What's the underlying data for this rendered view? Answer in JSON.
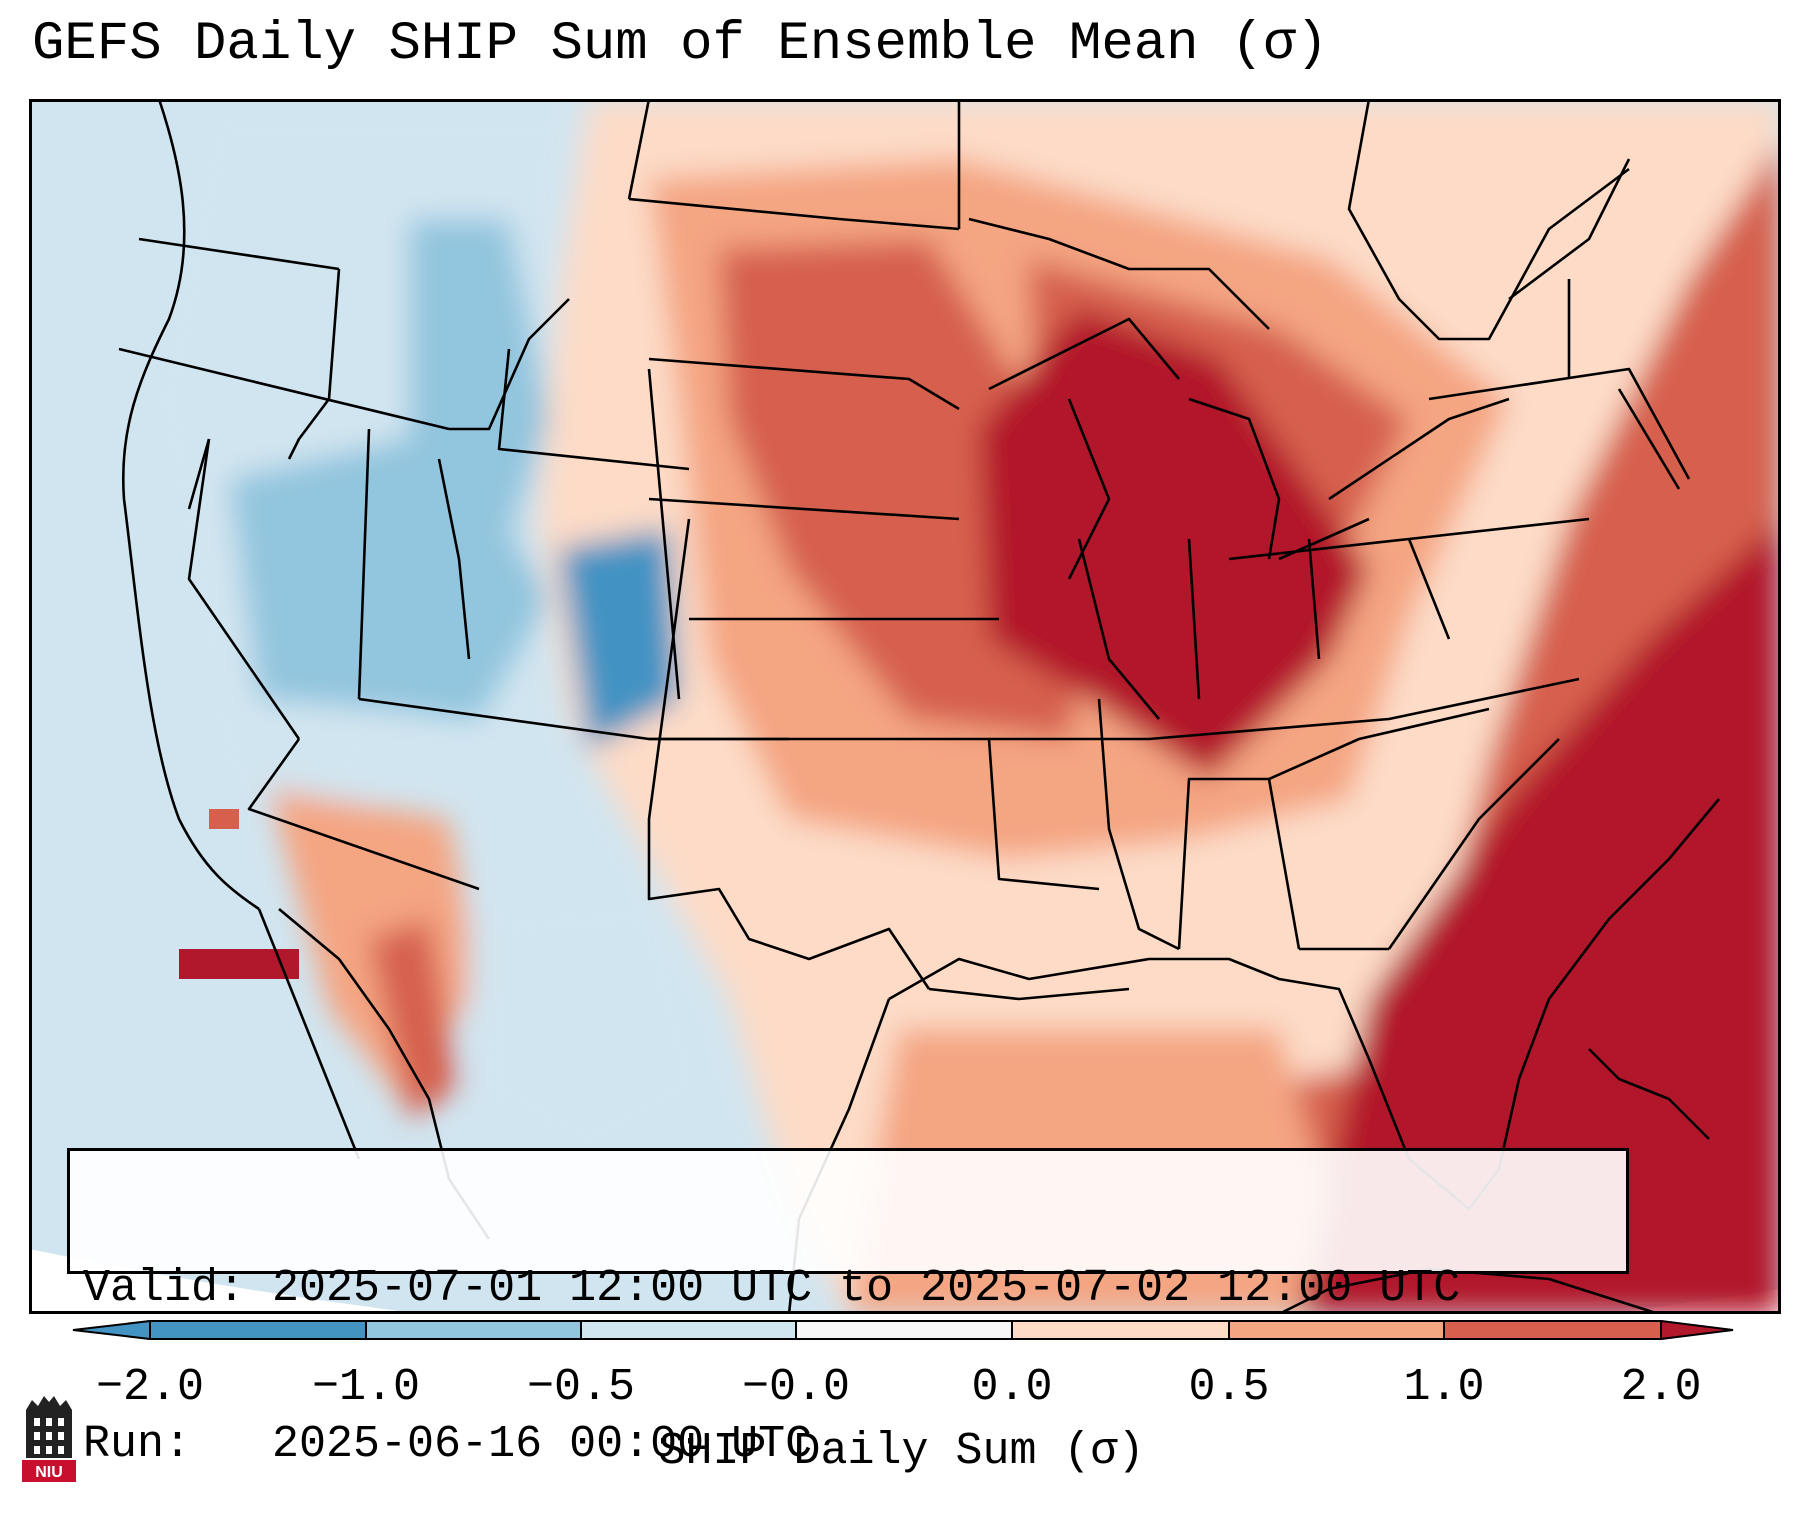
{
  "title": "GEFS Daily SHIP Sum of Ensemble Mean (σ)",
  "info": {
    "valid_line": "Valid: 2025-07-01 12:00 UTC to 2025-07-02 12:00 UTC",
    "run_line": "Run:   2025-06-16 00:00 UTC"
  },
  "colorbar": {
    "ticks": [
      "−2.0",
      "−1.0",
      "−0.5",
      "−0.0",
      "0.0",
      "0.5",
      "1.0",
      "2.0"
    ],
    "colors": [
      "#4393c3",
      "#92c5de",
      "#d1e5f0",
      "#f7f7f7",
      "#fddbc7",
      "#f4a582",
      "#d6604d",
      "#b2182b"
    ],
    "label": "SHIP Daily Sum (σ)"
  },
  "logo": {
    "text": "NIU",
    "colors": {
      "red": "#c8102e",
      "dark": "#222222"
    }
  },
  "legend_position": "bottom-center"
}
